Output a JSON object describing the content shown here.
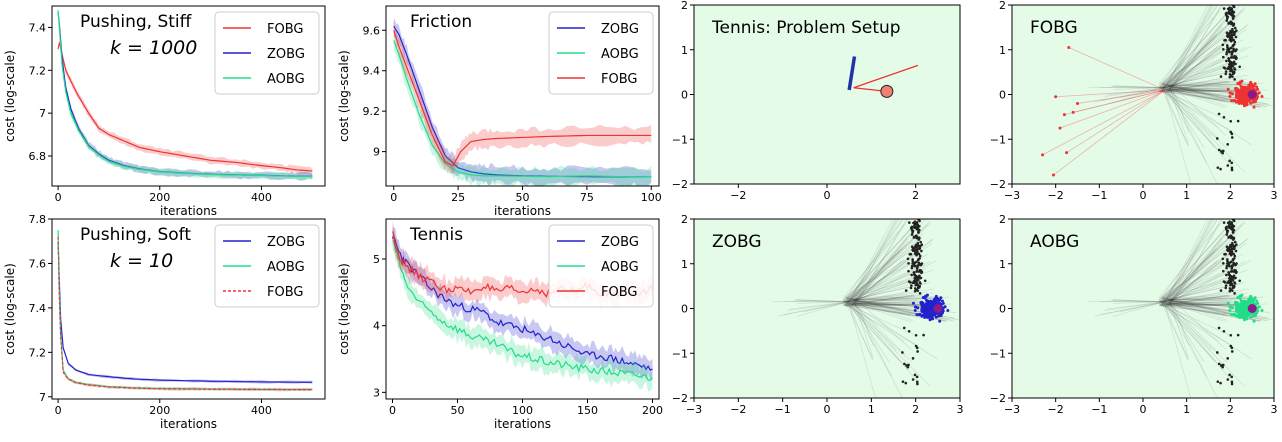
{
  "colors": {
    "fobg": "#ee3333",
    "zobg": "#2222cc",
    "aobg": "#22dd88",
    "scatter_bg": "#e4fbe8",
    "trajectory": "#333333",
    "goal": "#8b1a8b"
  },
  "chart_data": [
    {
      "id": "pushing-stiff",
      "type": "line",
      "title": "Pushing, Stiff",
      "subtitle": "k = 1000",
      "xlabel": "iterations",
      "ylabel": "cost (log-scale)",
      "xlim": [
        -12,
        525
      ],
      "ylim": [
        6.66,
        7.5
      ],
      "xticks": [
        0,
        200,
        400
      ],
      "yticks": [
        6.8,
        7.0,
        7.2,
        7.4
      ],
      "legend_position": "top-right",
      "series": [
        {
          "name": "FOBG",
          "color_key": "fobg",
          "style": "solid",
          "x": [
            0,
            3,
            8,
            15,
            25,
            40,
            60,
            80,
            100,
            130,
            160,
            200,
            250,
            300,
            350,
            400,
            440,
            470,
            500
          ],
          "y": [
            7.3,
            7.33,
            7.27,
            7.2,
            7.15,
            7.08,
            7.0,
            6.93,
            6.9,
            6.87,
            6.84,
            6.82,
            6.8,
            6.78,
            6.77,
            6.755,
            6.745,
            6.735,
            6.73
          ]
        },
        {
          "name": "ZOBG",
          "color_key": "zobg",
          "style": "solid",
          "x": [
            0,
            3,
            8,
            15,
            25,
            40,
            60,
            80,
            100,
            130,
            160,
            200,
            250,
            300,
            350,
            400,
            450,
            500
          ],
          "y": [
            7.47,
            7.4,
            7.25,
            7.12,
            7.02,
            6.93,
            6.85,
            6.81,
            6.78,
            6.755,
            6.74,
            6.727,
            6.72,
            6.715,
            6.712,
            6.71,
            6.707,
            6.705
          ]
        },
        {
          "name": "AOBG",
          "color_key": "aobg",
          "style": "solid",
          "x": [
            0,
            3,
            8,
            15,
            25,
            40,
            60,
            80,
            100,
            130,
            160,
            200,
            250,
            300,
            350,
            400,
            450,
            500
          ],
          "y": [
            7.48,
            7.38,
            7.22,
            7.1,
            7.0,
            6.92,
            6.845,
            6.805,
            6.775,
            6.752,
            6.738,
            6.726,
            6.719,
            6.714,
            6.711,
            6.709,
            6.706,
            6.704
          ]
        }
      ]
    },
    {
      "id": "friction",
      "type": "line",
      "title": "Friction",
      "xlabel": "iterations",
      "ylabel": "cost (log-scale)",
      "xlim": [
        -3,
        103
      ],
      "ylim": [
        8.83,
        9.72
      ],
      "xticks": [
        0,
        25,
        50,
        75,
        100
      ],
      "yticks": [
        9.0,
        9.2,
        9.4,
        9.6
      ],
      "legend_position": "top-right",
      "series": [
        {
          "name": "ZOBG",
          "color_key": "zobg",
          "style": "solid",
          "x": [
            0,
            2,
            5,
            10,
            15,
            20,
            25,
            30,
            35,
            40,
            50,
            60,
            75,
            90,
            100
          ],
          "y": [
            9.62,
            9.58,
            9.48,
            9.3,
            9.12,
            8.98,
            8.92,
            8.9,
            8.89,
            8.885,
            8.88,
            8.878,
            8.876,
            8.875,
            8.875
          ]
        },
        {
          "name": "AOBG",
          "color_key": "aobg",
          "style": "solid",
          "x": [
            0,
            2,
            5,
            10,
            15,
            20,
            25,
            30,
            35,
            40,
            50,
            60,
            75,
            90,
            100
          ],
          "y": [
            9.55,
            9.48,
            9.36,
            9.18,
            9.03,
            8.94,
            8.9,
            8.885,
            8.88,
            8.88,
            8.878,
            8.876,
            8.88,
            8.876,
            8.875
          ]
        },
        {
          "name": "FOBG",
          "color_key": "fobg",
          "style": "solid",
          "x": [
            0,
            2,
            5,
            10,
            15,
            20,
            23,
            26,
            30,
            35,
            40,
            50,
            60,
            75,
            90,
            100
          ],
          "y": [
            9.6,
            9.52,
            9.42,
            9.25,
            9.08,
            8.95,
            8.93,
            9.0,
            9.05,
            9.06,
            9.065,
            9.07,
            9.075,
            9.08,
            9.08,
            9.08
          ]
        }
      ]
    },
    {
      "id": "tennis-setup",
      "type": "scatter",
      "title": "Tennis: Problem Setup",
      "xlim": [
        -3,
        3
      ],
      "ylim": [
        -2,
        2
      ],
      "xticks": [
        -2,
        0,
        2
      ],
      "yticks": [
        -2,
        -1,
        0,
        1,
        2
      ],
      "paddle": {
        "x": [
          0.5,
          0.62
        ],
        "y": [
          0.1,
          0.85
        ]
      },
      "ball": {
        "x": 1.35,
        "y": 0.07
      },
      "velocity": {
        "x": [
          0.6,
          2.05
        ],
        "y": [
          0.15,
          0.65
        ]
      }
    },
    {
      "id": "fobg-scatter",
      "type": "scatter",
      "title": "FOBG",
      "xlim": [
        -3,
        3
      ],
      "ylim": [
        -2,
        2
      ],
      "xticks": [
        -3,
        -2,
        -1,
        0,
        1,
        2,
        3
      ],
      "yticks": [
        -2,
        -1,
        0,
        1,
        2
      ],
      "color_key": "fobg",
      "goal": {
        "x": 2.5,
        "y": 0.0
      },
      "outliers_x": [
        -1.7,
        -2.0,
        -1.5,
        -1.8,
        -1.6,
        -2.3,
        -2.05,
        -1.75,
        -1.9
      ],
      "outliers_y": [
        1.05,
        -0.05,
        -0.2,
        -0.45,
        -0.4,
        -1.35,
        -1.8,
        -1.3,
        -0.75
      ]
    },
    {
      "id": "pushing-soft",
      "type": "line",
      "title": "Pushing, Soft",
      "subtitle": "k = 10",
      "xlabel": "iterations",
      "ylabel": "cost (log-scale)",
      "xlim": [
        -12,
        525
      ],
      "ylim": [
        6.99,
        7.8
      ],
      "xticks": [
        0,
        200,
        400
      ],
      "yticks": [
        7.0,
        7.2,
        7.4,
        7.6,
        7.8
      ],
      "legend_position": "top-right",
      "series": [
        {
          "name": "ZOBG",
          "color_key": "zobg",
          "style": "solid",
          "x": [
            0,
            2,
            5,
            10,
            20,
            35,
            60,
            100,
            150,
            200,
            300,
            400,
            500
          ],
          "y": [
            7.7,
            7.55,
            7.35,
            7.22,
            7.15,
            7.12,
            7.1,
            7.09,
            7.08,
            7.075,
            7.07,
            7.067,
            7.065
          ]
        },
        {
          "name": "AOBG",
          "color_key": "aobg",
          "style": "solid",
          "x": [
            0,
            2,
            5,
            10,
            20,
            35,
            60,
            100,
            150,
            200,
            300,
            400,
            500
          ],
          "y": [
            7.75,
            7.5,
            7.28,
            7.12,
            7.08,
            7.065,
            7.055,
            7.045,
            7.04,
            7.037,
            7.035,
            7.033,
            7.032
          ]
        },
        {
          "name": "FOBG",
          "color_key": "fobg",
          "style": "dashed",
          "x": [
            0,
            2,
            5,
            10,
            20,
            35,
            60,
            100,
            150,
            200,
            300,
            400,
            500
          ],
          "y": [
            7.72,
            7.48,
            7.27,
            7.11,
            7.08,
            7.063,
            7.053,
            7.044,
            7.039,
            7.036,
            7.034,
            7.033,
            7.032
          ]
        }
      ]
    },
    {
      "id": "tennis",
      "type": "line",
      "title": "Tennis",
      "xlabel": "iterations",
      "ylabel": "cost (log-scale)",
      "xlim": [
        -5,
        205
      ],
      "ylim": [
        2.9,
        5.6
      ],
      "xticks": [
        0,
        50,
        100,
        150,
        200
      ],
      "yticks": [
        3,
        4,
        5
      ],
      "legend_position": "top-right",
      "series": [
        {
          "name": "ZOBG",
          "color_key": "zobg",
          "style": "solid",
          "x": [
            0,
            5,
            10,
            20,
            30,
            40,
            50,
            60,
            70,
            80,
            90,
            100,
            110,
            120,
            130,
            140,
            150,
            160,
            170,
            180,
            190,
            200
          ],
          "y": [
            5.35,
            5.1,
            4.95,
            4.75,
            4.55,
            4.4,
            4.3,
            4.25,
            4.2,
            4.05,
            4.0,
            3.95,
            3.85,
            3.82,
            3.72,
            3.65,
            3.55,
            3.55,
            3.5,
            3.45,
            3.4,
            3.35
          ]
        },
        {
          "name": "AOBG",
          "color_key": "aobg",
          "style": "solid",
          "x": [
            0,
            5,
            10,
            20,
            30,
            40,
            50,
            60,
            70,
            80,
            90,
            100,
            110,
            120,
            130,
            140,
            150,
            160,
            170,
            180,
            190,
            200
          ],
          "y": [
            5.3,
            4.95,
            4.65,
            4.35,
            4.2,
            4.05,
            3.95,
            3.85,
            3.78,
            3.72,
            3.62,
            3.55,
            3.5,
            3.45,
            3.42,
            3.38,
            3.35,
            3.32,
            3.3,
            3.28,
            3.25,
            3.22
          ]
        },
        {
          "name": "FOBG",
          "color_key": "fobg",
          "style": "solid",
          "x": [
            0,
            5,
            10,
            20,
            30,
            40,
            50,
            60,
            70,
            80,
            90,
            100,
            110,
            120,
            130,
            140,
            150,
            160,
            170,
            180,
            190,
            200
          ],
          "y": [
            5.4,
            5.05,
            4.9,
            4.75,
            4.65,
            4.55,
            4.55,
            4.5,
            4.6,
            4.5,
            4.55,
            4.5,
            4.55,
            4.48,
            4.55,
            4.5,
            4.6,
            4.5,
            4.45,
            4.55,
            4.5,
            4.55
          ]
        }
      ]
    },
    {
      "id": "zobg-scatter",
      "type": "scatter",
      "title": "ZOBG",
      "xlim": [
        -3,
        3
      ],
      "ylim": [
        -2,
        2
      ],
      "xticks": [
        -3,
        -2,
        -1,
        0,
        1,
        2,
        3
      ],
      "yticks": [
        -2,
        -1,
        0,
        1,
        2
      ],
      "color_key": "zobg",
      "goal": {
        "x": 2.5,
        "y": 0.0
      }
    },
    {
      "id": "aobg-scatter",
      "type": "scatter",
      "title": "AOBG",
      "xlim": [
        -3,
        3
      ],
      "ylim": [
        -2,
        2
      ],
      "xticks": [
        -3,
        -2,
        -1,
        0,
        1,
        2,
        3
      ],
      "yticks": [
        -2,
        -1,
        0,
        1,
        2
      ],
      "color_key": "aobg",
      "goal": {
        "x": 2.5,
        "y": 0.0
      }
    }
  ]
}
